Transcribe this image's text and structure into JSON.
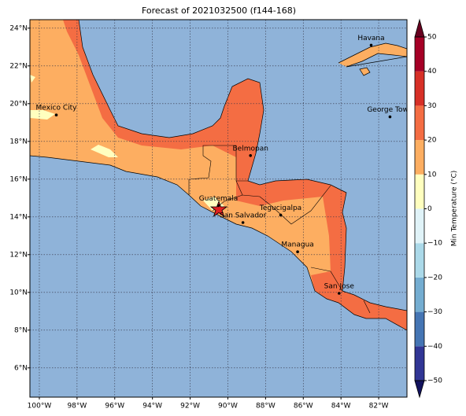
{
  "title": "Forecast of 2021032500 (f144-168)",
  "map": {
    "lonlim": [
      -100.5,
      -80.5
    ],
    "latlim": [
      4.45,
      24.45
    ],
    "grid": true,
    "lonticks": [
      {
        "value": -100,
        "label": "100°W"
      },
      {
        "value": -98,
        "label": "98°W"
      },
      {
        "value": -96,
        "label": "96°W"
      },
      {
        "value": -94,
        "label": "94°W"
      },
      {
        "value": -92,
        "label": "92°W"
      },
      {
        "value": -90,
        "label": "90°W"
      },
      {
        "value": -88,
        "label": "88°W"
      },
      {
        "value": -86,
        "label": "86°W"
      },
      {
        "value": -84,
        "label": "84°W"
      },
      {
        "value": -82,
        "label": "82°W"
      }
    ],
    "latticks": [
      {
        "value": 6,
        "label": "6°N"
      },
      {
        "value": 8,
        "label": "8°N"
      },
      {
        "value": 10,
        "label": "10°N"
      },
      {
        "value": 12,
        "label": "12°N"
      },
      {
        "value": 14,
        "label": "14°N"
      },
      {
        "value": 16,
        "label": "16°N"
      },
      {
        "value": 18,
        "label": "18°N"
      },
      {
        "value": 20,
        "label": "20°N"
      },
      {
        "value": 22,
        "label": "22°N"
      },
      {
        "value": 24,
        "label": "24°N"
      }
    ],
    "cities": [
      {
        "name": "Mexico City",
        "lon": -99.1,
        "lat": 19.4
      },
      {
        "name": "Belmopan",
        "lon": -88.8,
        "lat": 17.25
      },
      {
        "name": "Guatemala",
        "lon": -90.5,
        "lat": 14.6
      },
      {
        "name": "San Salvador",
        "lon": -89.2,
        "lat": 13.7
      },
      {
        "name": "Tegucigalpa",
        "lon": -87.2,
        "lat": 14.1
      },
      {
        "name": "Managua",
        "lon": -86.3,
        "lat": 12.15
      },
      {
        "name": "San Jose",
        "lon": -84.1,
        "lat": 9.95
      },
      {
        "name": "Havana",
        "lon": -82.4,
        "lat": 23.1
      },
      {
        "name": "George Town",
        "lon": -81.4,
        "lat": 19.3
      }
    ]
  },
  "colorbar": {
    "label": "Min Temperature (°C)",
    "levels": [
      -50,
      -40,
      -30,
      -20,
      -10,
      0,
      10,
      20,
      30,
      40,
      50
    ],
    "colors": [
      "#313695",
      "#4575b4",
      "#74add1",
      "#abd9e9",
      "#e0f3f8",
      "#ffffbf",
      "#fdae61",
      "#f46d43",
      "#d73027",
      "#a50026"
    ],
    "extend_colors": [
      "#12125e",
      "#67001f"
    ],
    "ticks": [
      {
        "value": -50,
        "label": "−50"
      },
      {
        "value": -40,
        "label": "−40"
      },
      {
        "value": -30,
        "label": "−30"
      },
      {
        "value": -20,
        "label": "−20"
      },
      {
        "value": -10,
        "label": "−10"
      },
      0,
      10,
      20,
      30,
      40,
      50
    ]
  }
}
